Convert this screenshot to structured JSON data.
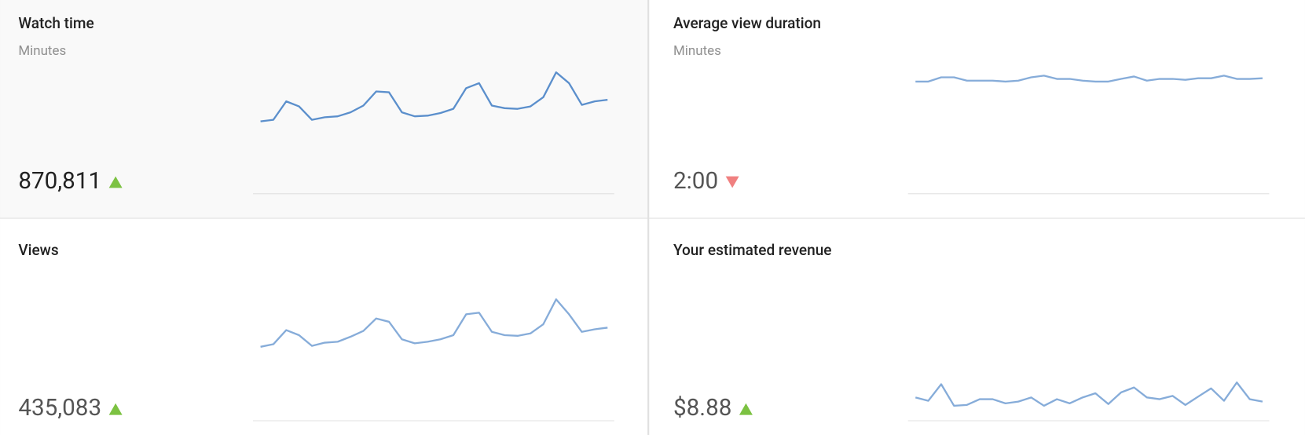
{
  "cards": [
    {
      "title": "Watch time",
      "subtitle": "Minutes",
      "value": "870,811",
      "trend": "up",
      "background": "#f9f9f9",
      "sparkline": {
        "type": "line",
        "color": "#5b8fcc",
        "ylim": [
          0,
          100
        ],
        "values": [
          50.3,
          51.4,
          64.2,
          60.7,
          51.4,
          53.2,
          53.8,
          56.6,
          61.3,
          71.1,
          70.5,
          56.6,
          53.8,
          54.3,
          56.1,
          59.0,
          73.4,
          76.9,
          61.3,
          59.5,
          59.0,
          60.7,
          67.1,
          84.4,
          76.9,
          61.8,
          64.2,
          65.3
        ]
      }
    },
    {
      "title": "Average view duration",
      "subtitle": "Minutes",
      "value": "2:00",
      "trend": "down",
      "background": "#ffffff",
      "sparkline": {
        "type": "line",
        "color": "#86acd9",
        "ylim": [
          0,
          100
        ],
        "values": [
          78.0,
          78.0,
          80.9,
          80.9,
          78.6,
          78.6,
          78.6,
          78.0,
          78.6,
          80.9,
          82.1,
          79.8,
          79.8,
          78.6,
          78.0,
          78.0,
          79.8,
          81.5,
          78.6,
          79.8,
          79.8,
          79.2,
          80.3,
          80.3,
          82.1,
          79.8,
          79.8,
          80.3
        ]
      }
    },
    {
      "title": "Views",
      "value": "435,083",
      "trend": "up",
      "background": "#ffffff",
      "sparkline": {
        "type": "line",
        "color": "#86acd9",
        "ylim": [
          0,
          100
        ],
        "values": [
          51.4,
          53.2,
          63.0,
          59.5,
          52.0,
          54.3,
          54.9,
          58.4,
          62.4,
          71.1,
          68.8,
          56.6,
          53.8,
          54.9,
          56.6,
          59.5,
          74.0,
          75.1,
          61.8,
          59.5,
          59.0,
          60.7,
          67.1,
          84.4,
          74.0,
          61.8,
          63.6,
          64.7
        ]
      }
    },
    {
      "title": "Your estimated revenue",
      "value": "$8.88",
      "trend": "up",
      "background": "#ffffff",
      "sparkline": {
        "type": "line",
        "color": "#86acd9",
        "ylim": [
          0,
          100
        ],
        "values": [
          16.2,
          13.9,
          25.4,
          10.4,
          11.0,
          15.0,
          15.0,
          12.1,
          13.3,
          16.2,
          10.4,
          15.0,
          12.1,
          16.2,
          19.1,
          11.6,
          19.7,
          23.1,
          16.2,
          15.0,
          17.3,
          11.0,
          16.8,
          22.5,
          13.9,
          26.6,
          15.0,
          13.3
        ]
      }
    }
  ]
}
